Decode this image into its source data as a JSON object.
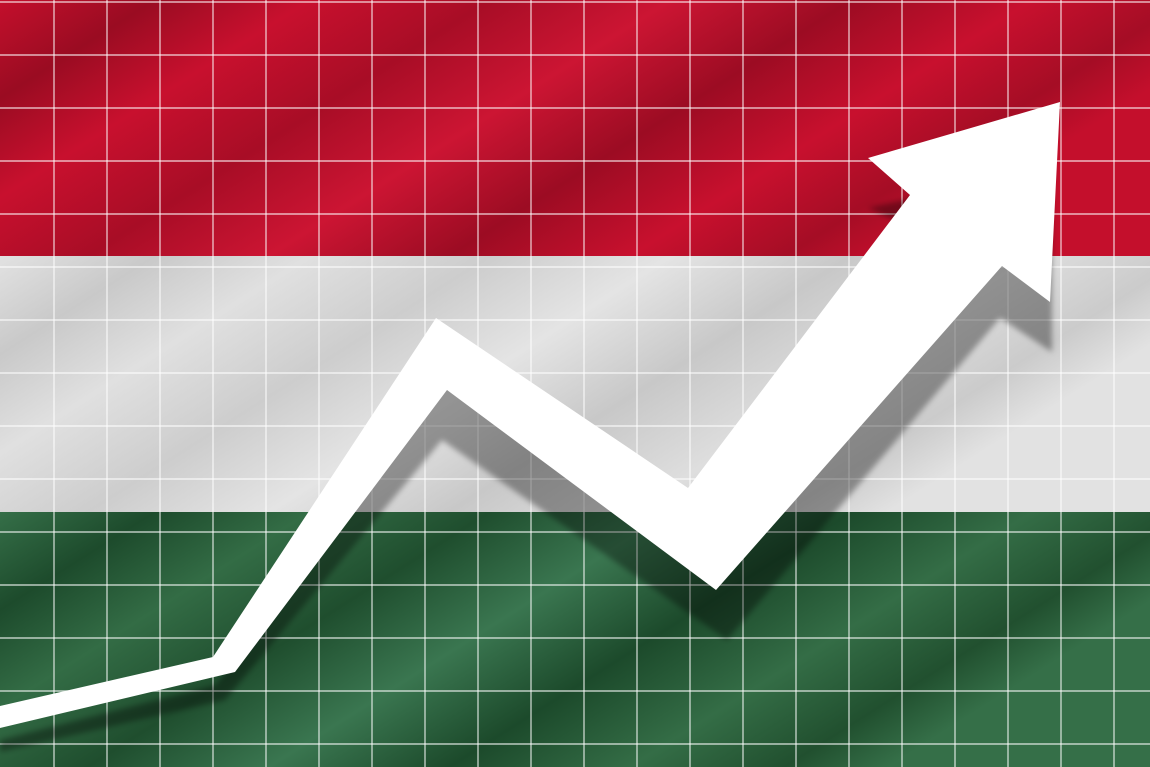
{
  "image": {
    "subject": "hungary-flag-rising-arrow",
    "flag": {
      "stripes": [
        {
          "name": "top-stripe",
          "color": "#c8102e",
          "shade": "#9a0c22",
          "highlight": "#d62a44"
        },
        {
          "name": "middle-stripe",
          "color": "#dcdcdc",
          "shade": "#c6c6c6",
          "highlight": "#ececec"
        },
        {
          "name": "bottom-stripe",
          "color": "#2f6b42",
          "shade": "#1c4a2b",
          "highlight": "#3f7d52"
        }
      ]
    },
    "grid": {
      "color": "#ffffff",
      "opacity": 0.7
    },
    "arrow": {
      "color": "#ffffff",
      "shadow_color": "#000000",
      "shadow_opacity": 0.35,
      "trend": "rising"
    }
  }
}
